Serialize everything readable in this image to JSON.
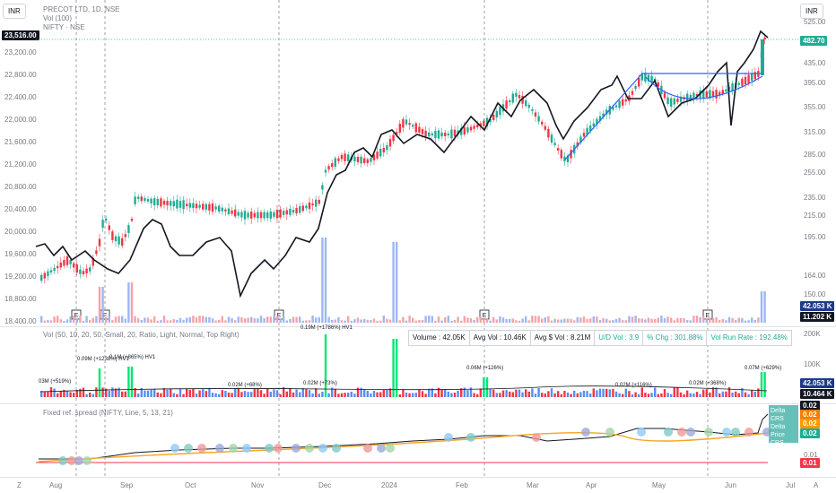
{
  "currency_left": "INR",
  "currency_right": "INR",
  "legend": {
    "title": "PRECOT LTD, 1D, NSE",
    "vol": "Vol (100)",
    "nifty": "NIFTY · NSE"
  },
  "current_price_left": "23,516.00",
  "right_axis_prices": [
    "525.00",
    "482.70",
    "435.00",
    "395.00",
    "355.00",
    "315.00",
    "285.00",
    "255.00",
    "235.00",
    "215.00",
    "195.00",
    "164.00",
    "150.00",
    "42.053 K",
    "11.202 K"
  ],
  "left_axis_values": [
    "23,200.00",
    "22,800.00",
    "22,400.00",
    "22,000.00",
    "21,600.00",
    "21,200.00",
    "20,800.00",
    "20,400.00",
    "20,000.00",
    "19,600.00",
    "19,200.00",
    "18,800.00",
    "18,400.00"
  ],
  "vol_panel": {
    "legend": "Vol (50, 10, 20, 50, Small, 20, Ratio, Light, Normal, Top Right)",
    "axis": [
      "200K",
      "100K"
    ],
    "tags": [
      "42.053 K",
      "10.464 K"
    ],
    "annotations": [
      "0.19M (+1786%) HV1",
      "0.09M (+1238%) HV1",
      "0.1M (+865%) HV1",
      "03M (+519%)",
      "0.02M (+68%)",
      "0.02M (+73%)",
      "0.06M (+126%)",
      "0.02M (+116%)",
      "0.02M (+368%)",
      "0.07M (+629%)"
    ]
  },
  "stats": {
    "volume": "Volume : 42.05K",
    "avg_vol": "Avg Vol : 10.46K",
    "avg_dollar_vol": "Avg $ Vol : 8.21M",
    "ud_vol": "U/D Vol : 3.9",
    "chg": "% Chg : 301.88%",
    "run_rate": "Vol Run Rate : 192.48%"
  },
  "spread_panel": {
    "legend": "Fixed ref. spread (NIFTY, Line, 5, 13, 21)",
    "tags": [
      "0.02",
      "0.02",
      "0.02",
      "0.02"
    ],
    "tag_labels": [
      "Delta CRS",
      "Delta Price",
      "CRS Trend"
    ],
    "axis_right": [
      "0.01",
      "0.01"
    ]
  },
  "x_axis": [
    "Aug",
    "Sep",
    "Oct",
    "Nov",
    "Dec",
    "2024",
    "Feb",
    "Mar",
    "Apr",
    "May",
    "Jun",
    "Jul"
  ],
  "earnings_marker": "E",
  "corner_left": "Z",
  "corner_right": "A",
  "colors": {
    "up": "#22ab94",
    "down": "#f23645",
    "line": "#131722",
    "vol_blue": "#5b8def",
    "vol_green": "#00e676",
    "orange": "#f5a623",
    "teal_tag": "#26a69a"
  }
}
